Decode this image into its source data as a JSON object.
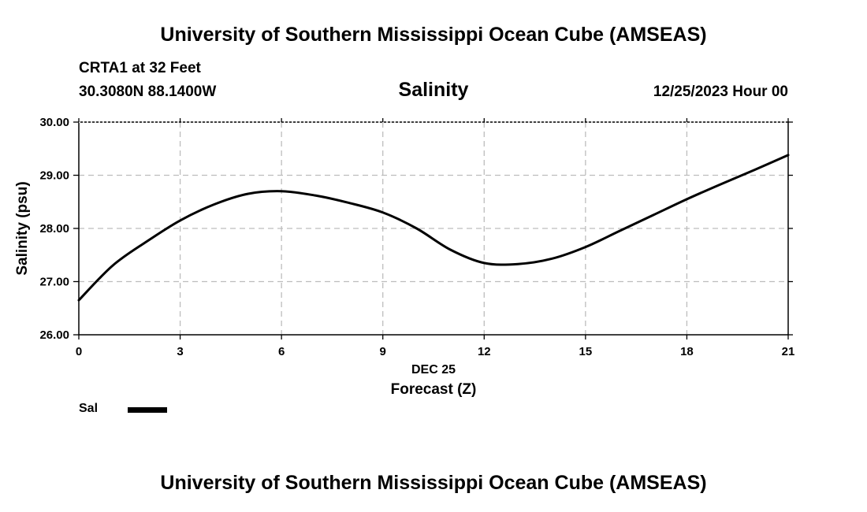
{
  "header": {
    "title": "University of Southern Mississippi Ocean Cube (AMSEAS)",
    "station": "CRTA1 at 32 Feet",
    "coordinates": "30.3080N  88.1400W",
    "datetime": "12/25/2023 Hour 00"
  },
  "footer": {
    "title": "University of Southern Mississippi Ocean Cube (AMSEAS)"
  },
  "legend": {
    "label": "Sal",
    "color": "#000000"
  },
  "chart_data": {
    "type": "line",
    "title": "Salinity",
    "xlabel": "Forecast (Z)",
    "xlabel_date": "DEC 25",
    "ylabel": "Salinity (psu)",
    "xlim": [
      0,
      21
    ],
    "ylim": [
      26,
      30
    ],
    "xticks": [
      0,
      3,
      6,
      9,
      12,
      15,
      18,
      21
    ],
    "yticks": [
      26,
      27,
      28,
      29,
      30
    ],
    "ytick_labels": [
      "26.00",
      "27.00",
      "28.00",
      "29.00",
      "30.00"
    ],
    "grid": true,
    "legend_position": "bottom-left",
    "series": [
      {
        "name": "Sal",
        "color": "#000000",
        "x": [
          0,
          1,
          2,
          3,
          4,
          5,
          6,
          7,
          8,
          9,
          10,
          11,
          12,
          13,
          14,
          15,
          16,
          17,
          18,
          19,
          20,
          21
        ],
        "values": [
          26.65,
          27.3,
          27.75,
          28.15,
          28.45,
          28.65,
          28.7,
          28.62,
          28.48,
          28.3,
          28.0,
          27.6,
          27.35,
          27.33,
          27.43,
          27.65,
          27.95,
          28.25,
          28.55,
          28.83,
          29.1,
          29.38
        ]
      }
    ]
  }
}
